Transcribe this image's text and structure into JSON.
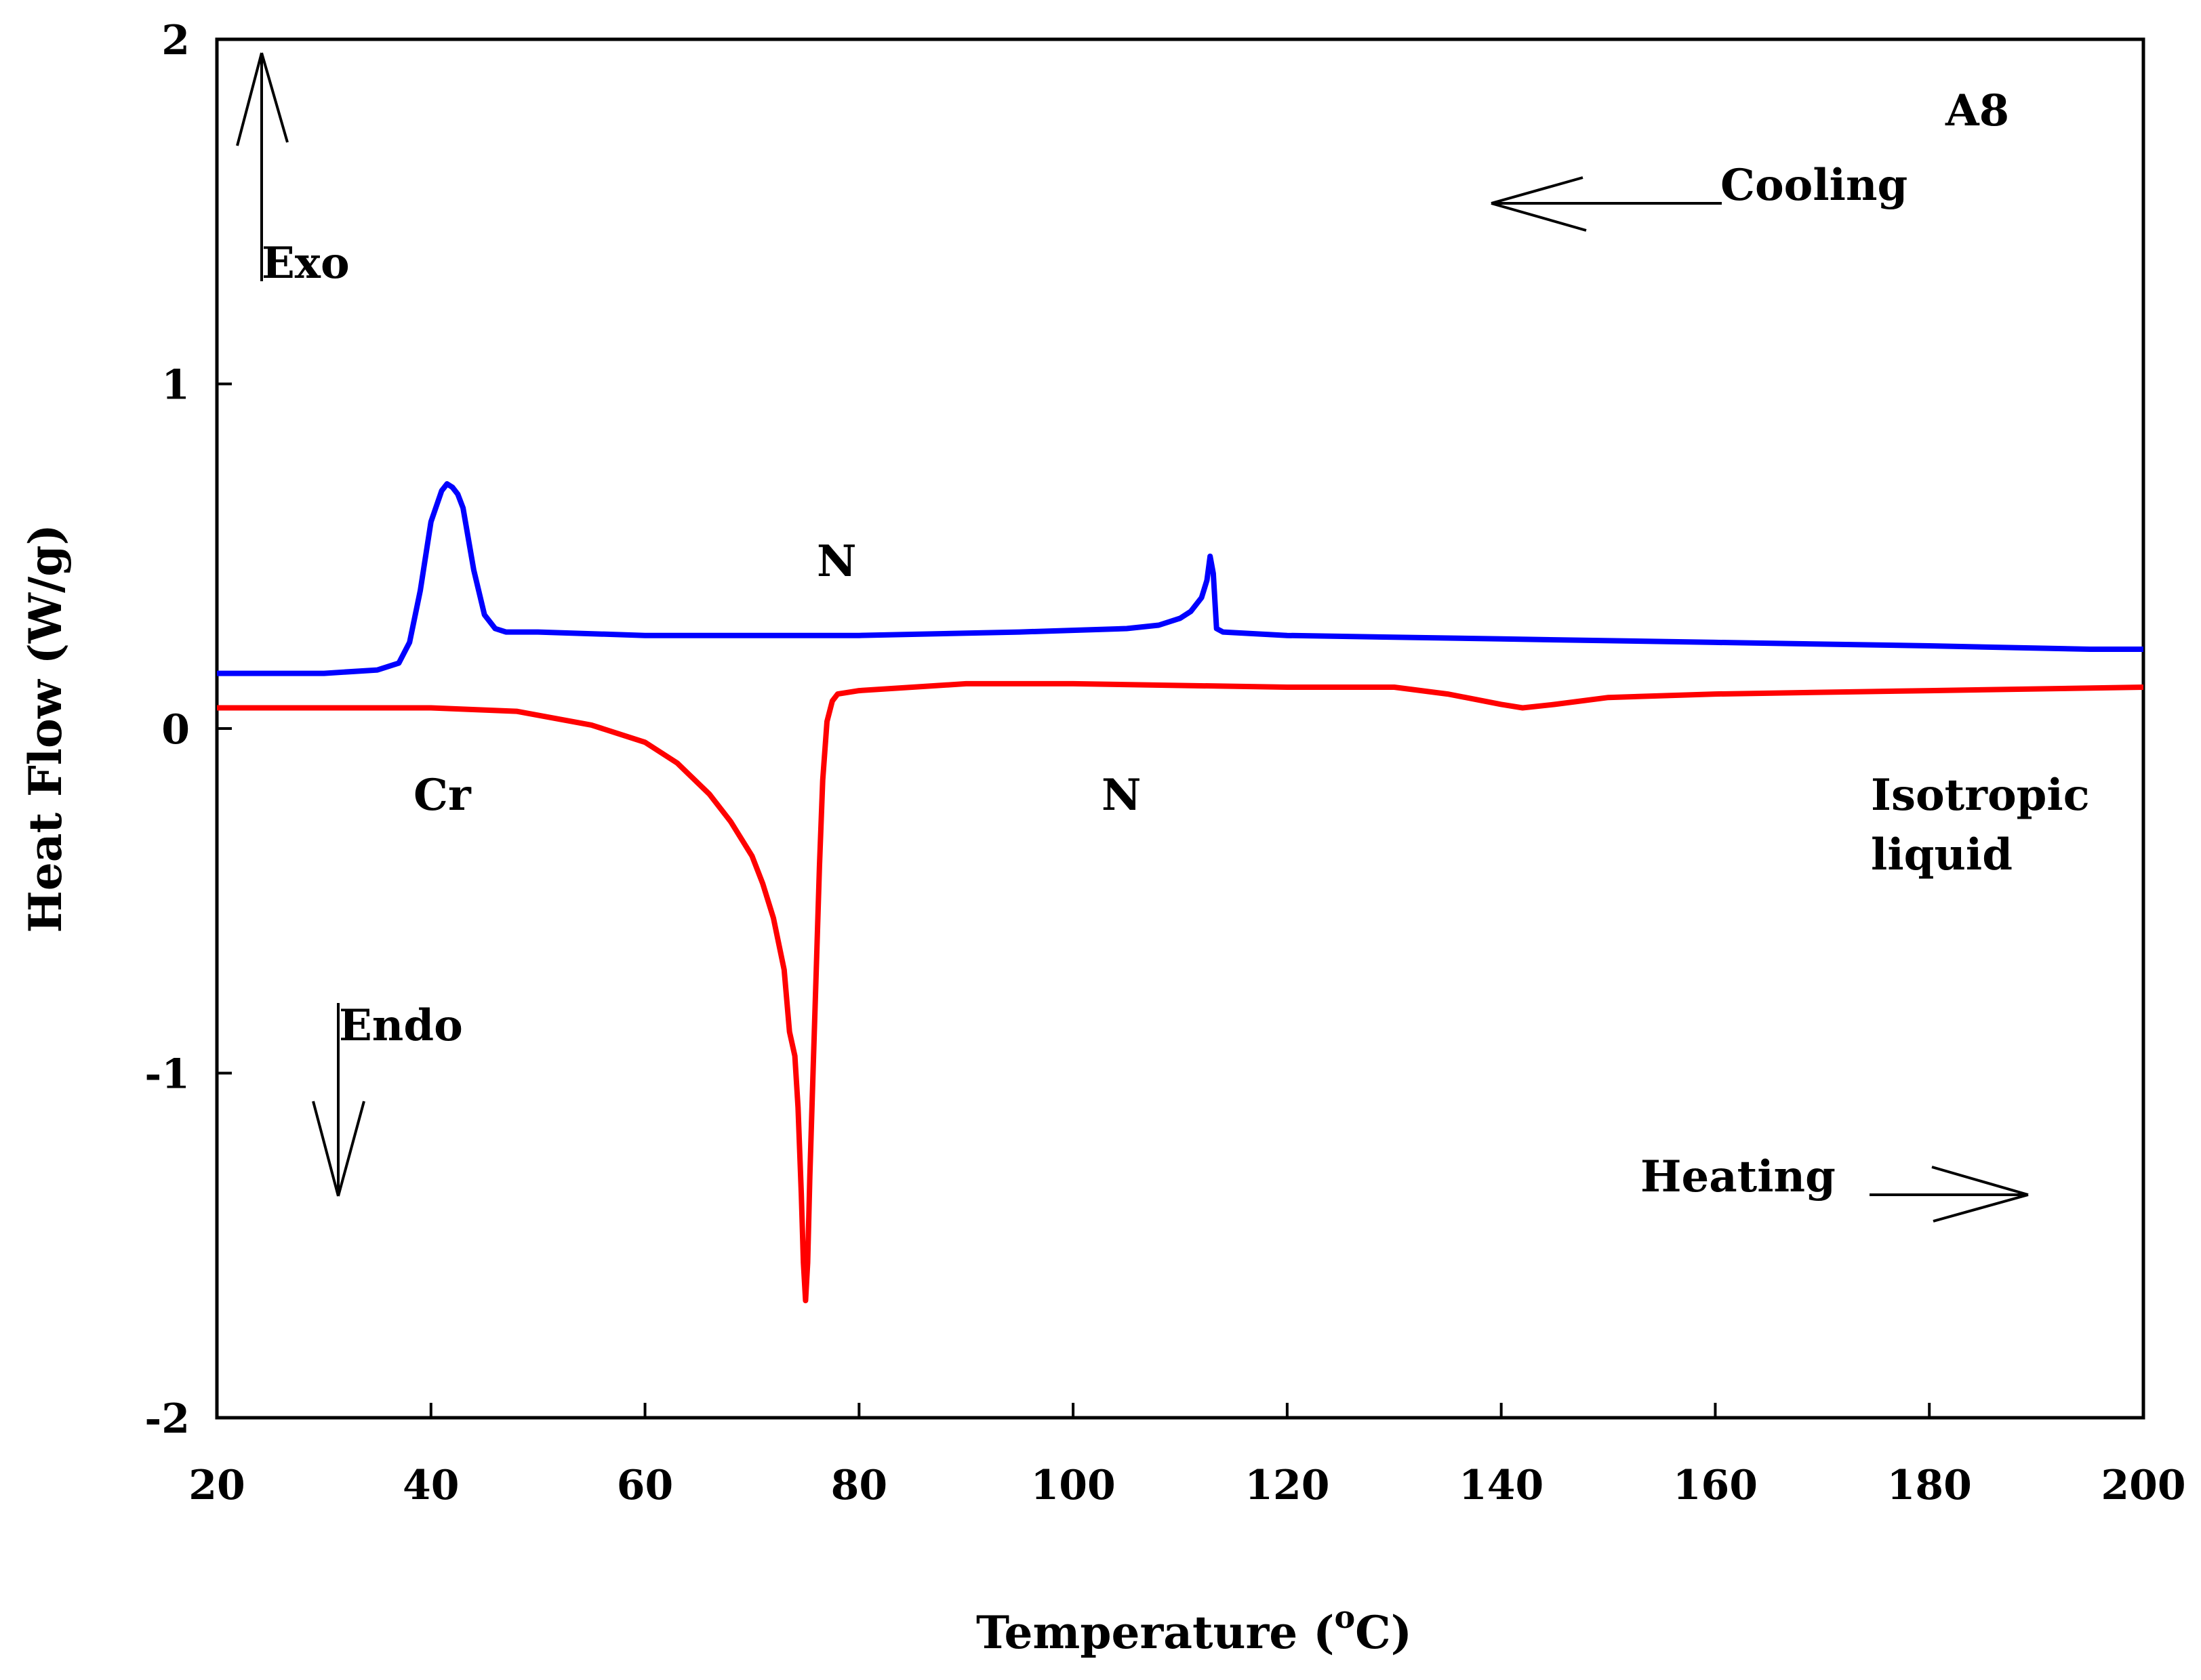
{
  "chart_data": {
    "type": "line",
    "title": "A8",
    "xlabel": "Temperature (",
    "xlabel_unit": "o",
    "xlabel_suffix": "C)",
    "ylabel": "Heat Flow (W/g)",
    "xlim": [
      20,
      200
    ],
    "ylim": [
      -2,
      2
    ],
    "xticks": [
      "20",
      "40",
      "60",
      "80",
      "100",
      "120",
      "140",
      "160",
      "180",
      "200"
    ],
    "yticks": [
      "-2",
      "-1",
      "0",
      "1",
      "2"
    ],
    "grid": false,
    "series": [
      {
        "name": "Cooling",
        "color": "#0000ff",
        "x": [
          20,
          30,
          35,
          37,
          38,
          39,
          40,
          41,
          41.5,
          42,
          42.5,
          43,
          44,
          45,
          46,
          47,
          50,
          60,
          80,
          95,
          105,
          108,
          110,
          111,
          112,
          112.5,
          112.8,
          113.1,
          113.4,
          114,
          120,
          140,
          160,
          180,
          195,
          200
        ],
        "y": [
          0.16,
          0.16,
          0.17,
          0.19,
          0.25,
          0.4,
          0.6,
          0.69,
          0.71,
          0.7,
          0.68,
          0.64,
          0.46,
          0.33,
          0.29,
          0.28,
          0.28,
          0.27,
          0.27,
          0.28,
          0.29,
          0.3,
          0.32,
          0.34,
          0.38,
          0.43,
          0.5,
          0.45,
          0.29,
          0.28,
          0.27,
          0.26,
          0.25,
          0.24,
          0.23,
          0.23
        ]
      },
      {
        "name": "Heating",
        "color": "#ff0000",
        "x": [
          20,
          40,
          48,
          55,
          60,
          63,
          66,
          68,
          70,
          71,
          72,
          73,
          73.5,
          74,
          74.3,
          74.6,
          74.8,
          75,
          75.2,
          75.4,
          75.7,
          76,
          76.3,
          76.6,
          77,
          77.5,
          78,
          80,
          90,
          100,
          120,
          130,
          135,
          140,
          142,
          145,
          150,
          160,
          180,
          200
        ],
        "y": [
          0.06,
          0.06,
          0.05,
          0.01,
          -0.04,
          -0.1,
          -0.19,
          -0.27,
          -0.37,
          -0.45,
          -0.55,
          -0.7,
          -0.88,
          -0.95,
          -1.1,
          -1.35,
          -1.55,
          -1.66,
          -1.55,
          -1.3,
          -1.0,
          -0.7,
          -0.4,
          -0.15,
          0.02,
          0.08,
          0.1,
          0.11,
          0.13,
          0.13,
          0.12,
          0.12,
          0.1,
          0.07,
          0.06,
          0.07,
          0.09,
          0.1,
          0.11,
          0.12
        ]
      }
    ],
    "annotations": {
      "sample": "A8",
      "cooling": "Cooling",
      "heating": "Heating",
      "exo": "Exo",
      "endo": "Endo",
      "phase_n_upper": "N",
      "phase_cr": "Cr",
      "phase_n_lower": "N",
      "isotropic_line1": "Isotropic",
      "isotropic_line2": "liquid"
    }
  }
}
